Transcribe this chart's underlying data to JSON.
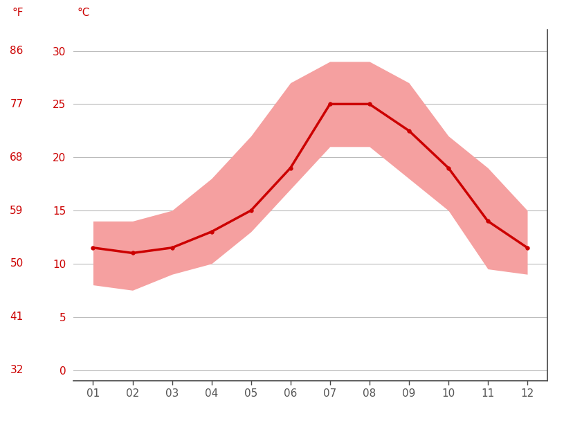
{
  "months": [
    1,
    2,
    3,
    4,
    5,
    6,
    7,
    8,
    9,
    10,
    11,
    12
  ],
  "month_labels": [
    "01",
    "02",
    "03",
    "04",
    "05",
    "06",
    "07",
    "08",
    "09",
    "10",
    "11",
    "12"
  ],
  "mean_c": [
    11.5,
    11.0,
    11.5,
    13.0,
    15.0,
    19.0,
    25.0,
    25.0,
    22.5,
    19.0,
    14.0,
    11.5
  ],
  "max_c": [
    14.0,
    14.0,
    15.0,
    18.0,
    22.0,
    27.0,
    29.0,
    29.0,
    27.0,
    22.0,
    19.0,
    15.0
  ],
  "min_c": [
    8.0,
    7.5,
    9.0,
    10.0,
    13.0,
    17.0,
    21.0,
    21.0,
    18.0,
    15.0,
    9.5,
    9.0
  ],
  "yticks_c": [
    0,
    5,
    10,
    15,
    20,
    25,
    30
  ],
  "yticks_f": [
    32,
    41,
    50,
    59,
    68,
    77,
    86
  ],
  "ylim_c": [
    -1,
    32
  ],
  "xlim": [
    0.5,
    12.5
  ],
  "line_color": "#cc0000",
  "fill_color": "#f5a0a0",
  "grid_color": "#bbbbbb",
  "label_color": "#cc0000",
  "tick_color": "#555555",
  "background_color": "#ffffff",
  "spine_color": "#444444",
  "figwidth": 8.15,
  "figheight": 6.11,
  "dpi": 100
}
